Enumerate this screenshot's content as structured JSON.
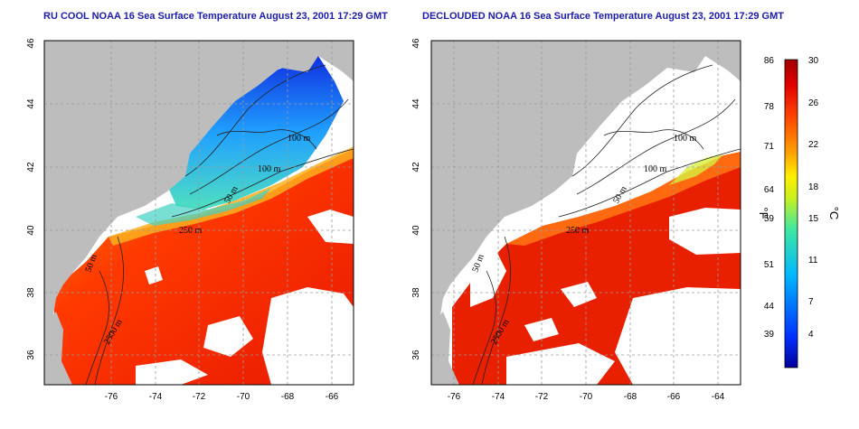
{
  "titles": {
    "left": "RU COOL NOAA 16 Sea Surface Temperature August 23, 2001 17:29 GMT",
    "right": "DECLOUDED NOAA 16 Sea Surface Temperature August 23, 2001 17:29 GMT"
  },
  "map": {
    "lon_ticks": [
      "-76",
      "-74",
      "-72",
      "-70",
      "-68",
      "-66",
      "-64"
    ],
    "lat_ticks": [
      "36",
      "38",
      "40",
      "42",
      "44",
      "46"
    ],
    "lon_range": [
      -77,
      -63
    ],
    "lat_range": [
      35,
      46
    ],
    "contour_labels_left": [
      "100 m",
      "100 m",
      "50 m",
      "250 m",
      "50 m",
      "2500 m"
    ],
    "contour_labels_right": [
      "100 m",
      "100 m",
      "50 m",
      "250 m",
      "50 m",
      "2500 m"
    ],
    "land_color": "#bdbdbd",
    "cloud_color": "#ffffff"
  },
  "colorbar": {
    "fahrenheit_ticks": [
      "86",
      "78",
      "71",
      "64",
      "59",
      "51",
      "44",
      "39"
    ],
    "celsius_ticks": [
      "30",
      "26",
      "22",
      "18",
      "15",
      "11",
      "7",
      "4"
    ],
    "fahrenheit_unit": "°F",
    "celsius_unit": "°C",
    "range_c": [
      0,
      30
    ],
    "colors": [
      "#0000aa",
      "#0050ff",
      "#00b4ff",
      "#40e0c0",
      "#a0f040",
      "#f0f000",
      "#ffa000",
      "#ff5000",
      "#e00000",
      "#a00000"
    ]
  }
}
